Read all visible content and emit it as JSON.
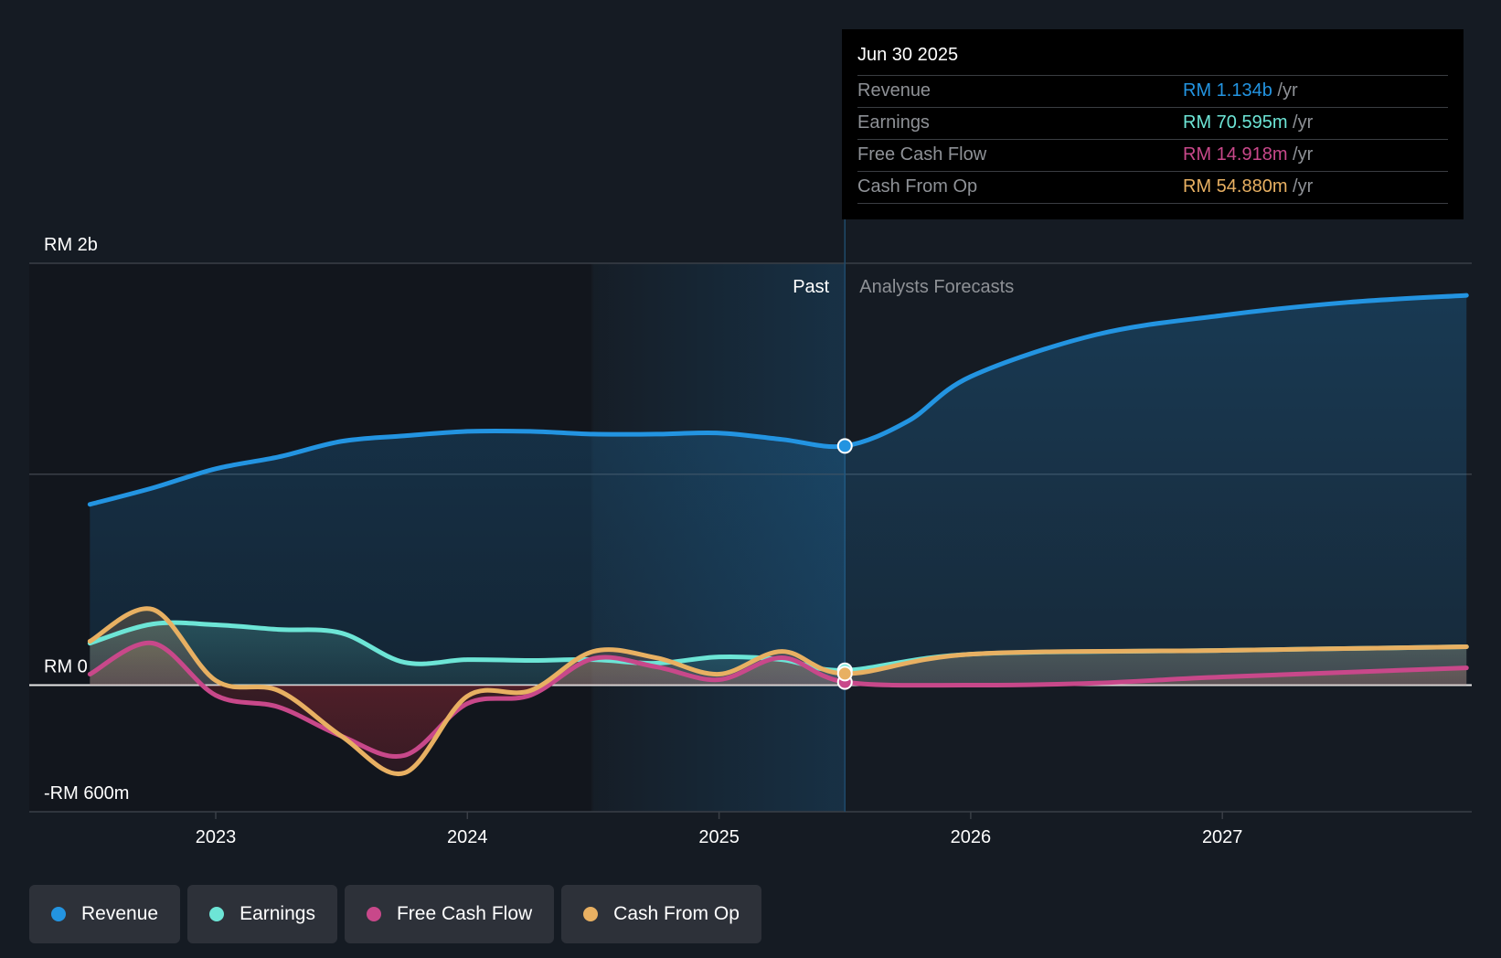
{
  "tooltip": {
    "date": "Jun 30 2025",
    "rows": [
      {
        "label": "Revenue",
        "value": "RM 1.134b",
        "unit": " /yr",
        "color": "#2394e1"
      },
      {
        "label": "Earnings",
        "value": "RM 70.595m",
        "unit": " /yr",
        "color": "#6de5d6"
      },
      {
        "label": "Free Cash Flow",
        "value": "RM 14.918m",
        "unit": " /yr",
        "color": "#c8488a"
      },
      {
        "label": "Cash From Op",
        "value": "RM 54.880m",
        "unit": " /yr",
        "color": "#e8b062"
      }
    ]
  },
  "legend": [
    {
      "label": "Revenue",
      "color": "#2394e1"
    },
    {
      "label": "Earnings",
      "color": "#6de5d6"
    },
    {
      "label": "Free Cash Flow",
      "color": "#c8488a"
    },
    {
      "label": "Cash From Op",
      "color": "#e8b062"
    }
  ],
  "chart_data": {
    "type": "line",
    "title": "",
    "xlabel": "",
    "ylabel": "",
    "currency": "RM",
    "ylim": [
      -600,
      2000
    ],
    "y_unit": "m",
    "xlim": [
      2022.5,
      2027.97
    ],
    "y_ticks": [
      {
        "value": 2000,
        "label": "RM 2b"
      },
      {
        "value": 0,
        "label": "RM 0"
      },
      {
        "value": -600,
        "label": "-RM 600m"
      }
    ],
    "gridlines": [
      2000,
      1000,
      0
    ],
    "x_ticks": [
      {
        "value": 2023,
        "label": "2023"
      },
      {
        "value": 2024,
        "label": "2024"
      },
      {
        "value": 2025,
        "label": "2025"
      },
      {
        "value": 2026,
        "label": "2026"
      },
      {
        "value": 2027,
        "label": "2027"
      }
    ],
    "past_band_start": 2024.5,
    "divider": 2025.5,
    "divider_labels": {
      "past": "Past",
      "forecast": "Analysts Forecasts"
    },
    "highlight": {
      "x": 2025.5,
      "label": "Jun 30 2025"
    },
    "series": [
      {
        "name": "Revenue",
        "color": "#2394e1",
        "x": [
          2022.5,
          2022.75,
          2023.0,
          2023.25,
          2023.5,
          2023.75,
          2024.0,
          2024.25,
          2024.5,
          2024.75,
          2025.0,
          2025.25,
          2025.5,
          2025.75,
          2026.0,
          2026.5,
          2027.0,
          2027.5,
          2027.97
        ],
        "values": [
          857,
          935,
          1026,
          1082,
          1156,
          1182,
          1203,
          1203,
          1190,
          1190,
          1195,
          1165,
          1134,
          1251,
          1463,
          1662,
          1753,
          1815,
          1848
        ]
      },
      {
        "name": "Earnings",
        "color": "#6de5d6",
        "x": [
          2022.5,
          2022.75,
          2023.0,
          2023.25,
          2023.5,
          2023.75,
          2024.0,
          2024.25,
          2024.5,
          2024.75,
          2025.0,
          2025.25,
          2025.5,
          2026.0,
          2027.0,
          2027.97
        ],
        "values": [
          199,
          290,
          286,
          264,
          247,
          108,
          121,
          117,
          121,
          104,
          134,
          121,
          70.6,
          147,
          165,
          182
        ]
      },
      {
        "name": "Free Cash Flow",
        "color": "#c8488a",
        "x": [
          2022.5,
          2022.75,
          2023.0,
          2023.25,
          2023.5,
          2023.75,
          2024.0,
          2024.25,
          2024.5,
          2024.75,
          2025.0,
          2025.25,
          2025.5,
          2026.0,
          2026.5,
          2027.0,
          2027.97
        ],
        "values": [
          52,
          199,
          -48,
          -104,
          -242,
          -333,
          -87,
          -48,
          126,
          87,
          26,
          130,
          14.9,
          0,
          10,
          39,
          82
        ]
      },
      {
        "name": "Cash From Op",
        "color": "#e8b062",
        "x": [
          2022.5,
          2022.75,
          2023.0,
          2023.25,
          2023.5,
          2023.75,
          2024.0,
          2024.25,
          2024.5,
          2024.75,
          2025.0,
          2025.25,
          2025.5,
          2026.0,
          2027.0,
          2027.97
        ],
        "values": [
          208,
          359,
          22,
          -26,
          -242,
          -416,
          -52,
          -26,
          160,
          130,
          52,
          160,
          54.9,
          147,
          165,
          182
        ]
      }
    ]
  }
}
